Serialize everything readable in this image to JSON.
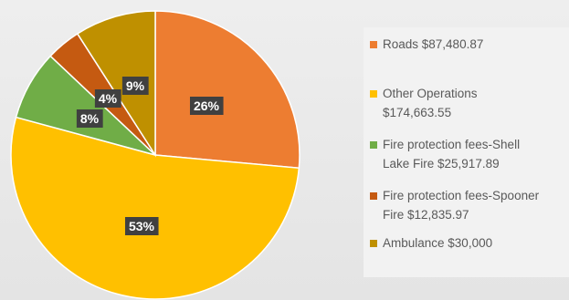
{
  "chart_data": {
    "type": "pie",
    "title": "",
    "slices": [
      {
        "name": "Roads",
        "legend": "Roads $87,480.87",
        "value": 87480.87,
        "label": "26%",
        "color": "#ed7d31"
      },
      {
        "name": "Other Operations",
        "legend": "Other Operations\n$174,663.55",
        "value": 174663.55,
        "label": "53%",
        "color": "#ffc000"
      },
      {
        "name": "Fire protection fees-Shell Lake Fire",
        "legend": "Fire protection fees-Shell\nLake Fire $25,917.89",
        "value": 25917.89,
        "label": "8%",
        "color": "#70ad47"
      },
      {
        "name": "Fire protection fees-Spooner Fire",
        "legend": "Fire protection fees-Spooner\nFire $12,835.97",
        "value": 12835.97,
        "label": "4%",
        "color": "#c55a11"
      },
      {
        "name": "Ambulance",
        "legend": "Ambulance $30,000",
        "value": 30000,
        "label": "9%",
        "color": "#bf9000"
      }
    ],
    "legend_position": "right"
  }
}
